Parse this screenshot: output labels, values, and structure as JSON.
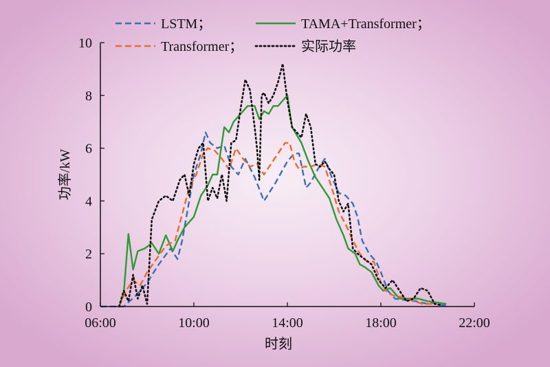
{
  "chart_data": {
    "type": "line",
    "xlabel": "时刻",
    "ylabel": "功率/kW",
    "x_ticks": [
      "06:00",
      "10:00",
      "14:00",
      "18:00",
      "22:00"
    ],
    "x_range_hours": [
      6,
      22
    ],
    "ylim": [
      0,
      10
    ],
    "y_ticks": [
      0,
      2,
      4,
      6,
      8,
      10
    ],
    "legend_placement": "top",
    "series": [
      {
        "name": "LSTM；",
        "color": "#3c6fb4",
        "dash": "dashed",
        "x": [
          6.0,
          6.8,
          7.0,
          7.5,
          8.0,
          8.5,
          9.0,
          9.3,
          9.5,
          9.8,
          10.0,
          10.3,
          10.5,
          10.7,
          11.0,
          11.3,
          11.6,
          11.9,
          12.2,
          12.6,
          13.0,
          13.5,
          14.0,
          14.3,
          14.5,
          14.8,
          15.0,
          15.3,
          15.6,
          15.9,
          16.2,
          16.5,
          16.8,
          17.0,
          17.2,
          17.5,
          17.8,
          18.0,
          18.3,
          18.6,
          19.0,
          19.5,
          20.0,
          20.3,
          20.6,
          20.8
        ],
        "values": [
          0,
          0,
          0,
          0.4,
          0.9,
          1.6,
          2.2,
          1.8,
          2.5,
          4.0,
          5.0,
          5.8,
          6.6,
          6.2,
          6.0,
          6.1,
          5.3,
          5.0,
          5.6,
          4.9,
          4.0,
          4.7,
          5.5,
          5.8,
          5.8,
          4.5,
          4.7,
          5.2,
          5.6,
          4.9,
          4.3,
          4.2,
          3.9,
          3.4,
          2.5,
          2.0,
          1.7,
          1.3,
          0.6,
          0.3,
          0.25,
          0.2,
          0.1,
          0.15,
          0.05,
          0.05
        ]
      },
      {
        "name": "TAMA+Transformer；",
        "color": "#2e9a34",
        "dash": "solid",
        "x": [
          6.8,
          7.0,
          7.2,
          7.4,
          7.6,
          7.9,
          8.2,
          8.5,
          8.8,
          9.1,
          9.3,
          9.6,
          10.0,
          10.3,
          10.6,
          10.8,
          11.0,
          11.3,
          11.5,
          11.7,
          12.0,
          12.3,
          12.6,
          12.8,
          13.0,
          13.2,
          13.4,
          13.6,
          13.8,
          14.0,
          14.2,
          14.4,
          14.6,
          14.9,
          15.2,
          15.5,
          15.8,
          16.1,
          16.4,
          16.6,
          16.9,
          17.1,
          17.3,
          17.6,
          17.9,
          18.1,
          18.4,
          18.8,
          19.2,
          19.6,
          20.0,
          20.4,
          20.8
        ],
        "values": [
          0,
          0.5,
          2.75,
          1.4,
          2.1,
          2.2,
          2.4,
          2.0,
          2.7,
          2.1,
          2.5,
          3.0,
          3.4,
          4.2,
          4.6,
          5.0,
          5.0,
          6.8,
          6.6,
          7.0,
          7.3,
          7.6,
          7.6,
          7.1,
          7.4,
          7.3,
          7.6,
          7.6,
          7.8,
          8.0,
          6.8,
          6.5,
          6.2,
          5.5,
          4.9,
          4.5,
          4.1,
          3.3,
          2.7,
          2.2,
          2.0,
          1.6,
          1.5,
          1.3,
          0.8,
          0.6,
          0.7,
          0.3,
          0.3,
          0.3,
          0.2,
          0.15,
          0.1
        ]
      },
      {
        "name": "Transformer；",
        "color": "#ea6a2a",
        "dash": "dashed",
        "x": [
          6.8,
          7.1,
          7.4,
          7.7,
          8.0,
          8.4,
          8.8,
          9.2,
          9.5,
          9.8,
          10.1,
          10.4,
          10.6,
          10.9,
          11.2,
          11.5,
          11.8,
          12.1,
          12.4,
          12.7,
          13.0,
          13.3,
          13.6,
          13.9,
          14.1,
          14.3,
          14.5,
          14.7,
          15.0,
          15.3,
          15.6,
          15.9,
          16.2,
          16.5,
          16.8,
          17.1,
          17.4,
          17.7,
          18.0,
          18.3,
          18.6,
          19.0,
          19.4,
          19.8,
          20.2
        ],
        "values": [
          0,
          0.6,
          1.0,
          0.8,
          1.3,
          1.8,
          2.3,
          2.5,
          3.5,
          4.5,
          5.0,
          5.8,
          6.0,
          5.9,
          5.6,
          5.2,
          6.0,
          5.6,
          5.3,
          5.4,
          5.0,
          5.4,
          5.8,
          6.2,
          6.2,
          5.5,
          5.2,
          5.3,
          5.3,
          5.4,
          5.3,
          4.5,
          3.6,
          3.1,
          2.5,
          2.0,
          1.7,
          1.7,
          0.9,
          0.5,
          0.4,
          0.35,
          0.2,
          0.1,
          0.1
        ]
      },
      {
        "name": "实际功率",
        "color": "#111111",
        "dash": "dotted",
        "x": [
          6.8,
          7.0,
          7.2,
          7.4,
          7.6,
          7.8,
          8.0,
          8.2,
          8.5,
          8.8,
          9.1,
          9.4,
          9.6,
          9.8,
          10.0,
          10.2,
          10.4,
          10.6,
          10.8,
          11.0,
          11.2,
          11.4,
          11.6,
          11.8,
          12.0,
          12.2,
          12.4,
          12.6,
          12.7,
          12.8,
          12.9,
          13.0,
          13.2,
          13.4,
          13.6,
          13.8,
          14.0,
          14.2,
          14.4,
          14.6,
          14.8,
          15.0,
          15.2,
          15.4,
          15.6,
          15.8,
          16.0,
          16.2,
          16.4,
          16.6,
          16.8,
          17.0,
          17.3,
          17.6,
          17.9,
          18.2,
          18.5,
          18.8,
          19.1,
          19.4,
          19.7,
          20.0,
          20.3,
          20.6
        ],
        "values": [
          0,
          0.6,
          0.2,
          1.2,
          0.3,
          0.8,
          0.1,
          3.3,
          4.0,
          4.2,
          4.0,
          4.8,
          5.0,
          4.2,
          5.4,
          6.0,
          6.2,
          4.0,
          4.5,
          4.1,
          5.0,
          4.0,
          6.2,
          6.3,
          7.5,
          8.6,
          8.2,
          6.8,
          6.0,
          4.8,
          8.0,
          8.1,
          7.7,
          8.0,
          8.5,
          9.2,
          7.8,
          6.8,
          6.6,
          6.4,
          7.3,
          6.8,
          5.4,
          5.3,
          5.5,
          5.2,
          5.0,
          4.0,
          3.6,
          3.9,
          2.2,
          2.0,
          1.8,
          1.6,
          1.0,
          0.7,
          1.0,
          0.6,
          0.2,
          0.3,
          0.7,
          0.6,
          0.1,
          0.05
        ]
      }
    ]
  }
}
